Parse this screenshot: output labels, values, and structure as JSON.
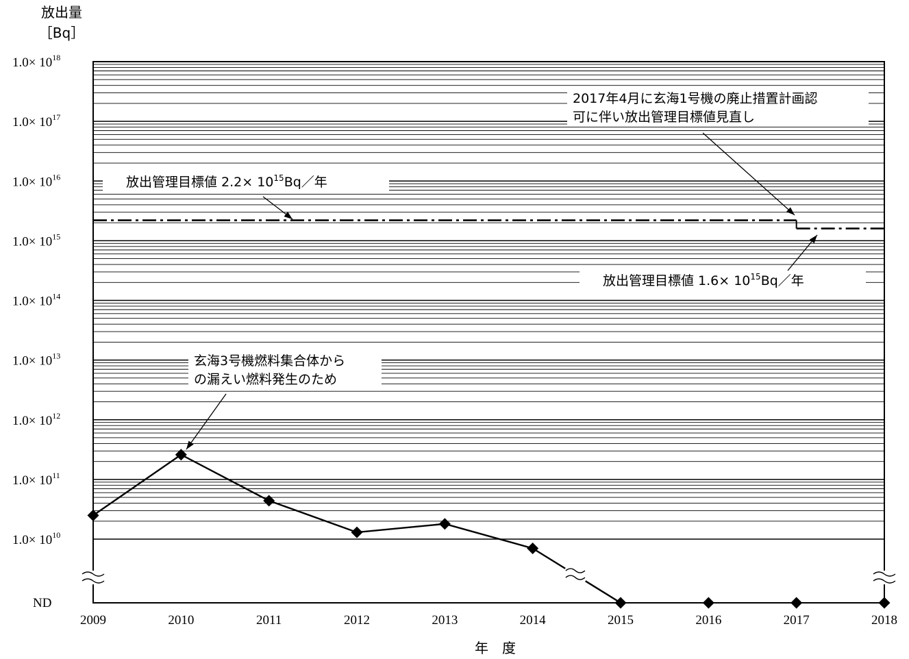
{
  "chart_data": {
    "type": "line",
    "title": "",
    "ylabel_line1": "放出量",
    "ylabel_line2": "［Bq］",
    "xlabel": "年　度",
    "yscale": "log",
    "ylim": [
      10000000000.0,
      1e+18
    ],
    "nd_label": "ND",
    "ytick_mantissa": "1.0×",
    "ytick_base": "10",
    "ytick_exponents": [
      18,
      17,
      16,
      15,
      14,
      13,
      12,
      11,
      10
    ],
    "categories": [
      "2009",
      "2010",
      "2011",
      "2012",
      "2013",
      "2014",
      "2015",
      "2016",
      "2017",
      "2018"
    ],
    "series": [
      {
        "values": [
          25000000000.0,
          260000000000.0,
          44000000000.0,
          13000000000.0,
          18000000000.0,
          7000000000.0,
          "ND",
          "ND",
          "ND",
          "ND"
        ]
      }
    ],
    "target_lines": [
      {
        "value": 2200000000000000.0,
        "from": "2009",
        "to": "2017"
      },
      {
        "value": 1600000000000000.0,
        "from": "2017",
        "to": "2018"
      }
    ],
    "annotations": {
      "target1": {
        "prefix": "放出管理目標値",
        "mantissa": "2.2×",
        "base": "10",
        "exp": "15",
        "unit": "Bq／年"
      },
      "target2": {
        "prefix": "放出管理目標値",
        "mantissa": "1.6×",
        "base": "10",
        "exp": "15",
        "unit": "Bq／年"
      },
      "revision": {
        "line1": "2017年4月に玄海1号機の廃止措置計画認",
        "line2": "可に伴い放出管理目標値見直し"
      },
      "leak": {
        "line1": "玄海3号機燃料集合体から",
        "line2": "の漏えい燃料発生のため"
      }
    },
    "grid": true
  }
}
